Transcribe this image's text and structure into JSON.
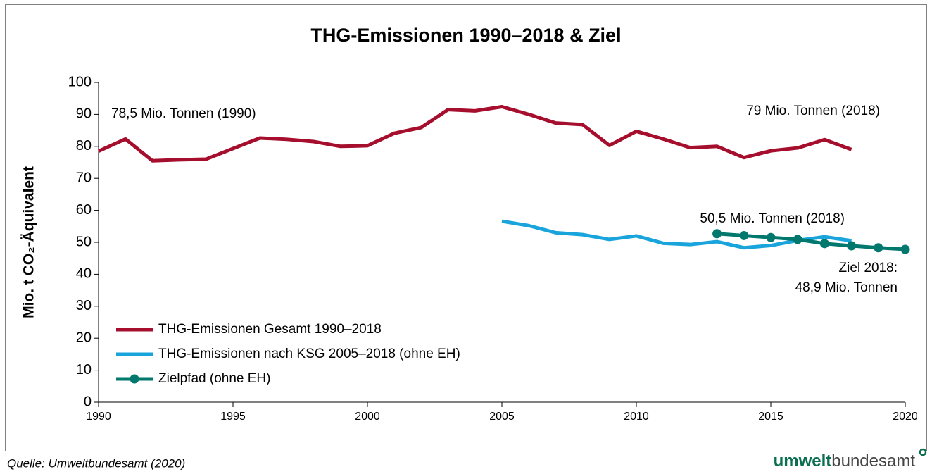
{
  "chart_data": {
    "type": "line",
    "title": "THG-Emissionen 1990–2018 & Ziel",
    "y_label": "Mio. t CO₂-Äquivalent",
    "xlim": [
      1990,
      2020
    ],
    "xticks": [
      1990,
      1995,
      2000,
      2005,
      2010,
      2015,
      2020
    ],
    "ylim": [
      0,
      100
    ],
    "yticks": [
      0,
      10,
      20,
      30,
      40,
      50,
      60,
      70,
      80,
      90,
      100
    ],
    "series": [
      {
        "name": "THG-Emissionen Gesamt 1990–2018",
        "color": "#a50f2d",
        "markers": false,
        "x": [
          1990,
          1991,
          1992,
          1993,
          1994,
          1995,
          1996,
          1997,
          1998,
          1999,
          2000,
          2001,
          2002,
          2003,
          2004,
          2005,
          2006,
          2007,
          2008,
          2009,
          2010,
          2011,
          2012,
          2013,
          2014,
          2015,
          2016,
          2017,
          2018
        ],
        "values": [
          78.5,
          82.3,
          75.5,
          75.8,
          76.0,
          79.3,
          82.6,
          82.2,
          81.5,
          80.0,
          80.2,
          84.1,
          85.9,
          91.5,
          91.1,
          92.4,
          90.0,
          87.3,
          86.8,
          80.3,
          84.7,
          82.3,
          79.6,
          80.0,
          76.5,
          78.6,
          79.5,
          82.1,
          79.0
        ]
      },
      {
        "name": "THG-Emissionen nach KSG 2005–2018 (ohne EH)",
        "color": "#1aa4dc",
        "markers": false,
        "x": [
          2005,
          2006,
          2007,
          2008,
          2009,
          2010,
          2011,
          2012,
          2013,
          2014,
          2015,
          2016,
          2017,
          2018
        ],
        "values": [
          56.6,
          55.2,
          53.0,
          52.4,
          50.9,
          52.0,
          49.7,
          49.3,
          50.2,
          48.3,
          49.0,
          50.6,
          51.7,
          50.5
        ]
      },
      {
        "name": "Zielpfad (ohne EH)",
        "color": "#00786e",
        "markers": true,
        "x": [
          2013,
          2014,
          2015,
          2016,
          2017,
          2018,
          2019,
          2020
        ],
        "values": [
          52.7,
          52.1,
          51.5,
          50.9,
          49.6,
          48.9,
          48.3,
          47.8
        ]
      }
    ],
    "annotations": [
      "78,5 Mio. Tonnen (1990)",
      "79 Mio. Tonnen (2018)",
      "50,5 Mio. Tonnen (2018)",
      "Ziel 2018:",
      "48,9 Mio. Tonnen"
    ],
    "source": "Quelle: Umweltbundesamt (2020)",
    "logo": [
      "umwelt",
      "bundesamt"
    ]
  }
}
